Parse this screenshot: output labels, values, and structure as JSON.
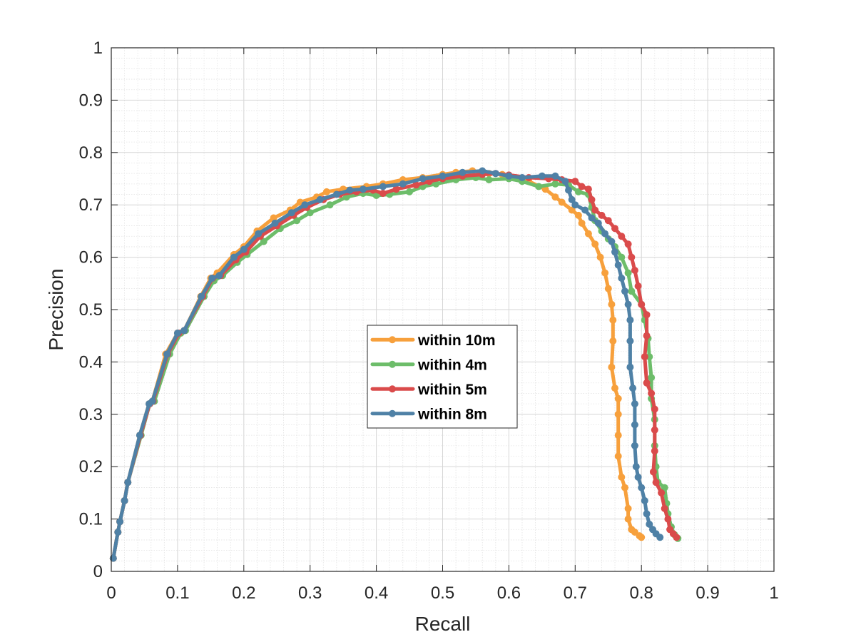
{
  "chart_data": {
    "type": "line",
    "title": "",
    "xlabel": "Recall",
    "ylabel": "Precision",
    "xlim": [
      0,
      1
    ],
    "ylim": [
      0,
      1
    ],
    "xticks": [
      "0",
      "0.1",
      "0.2",
      "0.3",
      "0.4",
      "0.5",
      "0.6",
      "0.7",
      "0.8",
      "0.9",
      "1"
    ],
    "yticks": [
      "0",
      "0.1",
      "0.2",
      "0.3",
      "0.4",
      "0.5",
      "0.6",
      "0.7",
      "0.8",
      "0.9",
      "1"
    ],
    "grid": true,
    "minor_grid": true,
    "legend_position": "center",
    "series": [
      {
        "name": "within 10m",
        "color": "#F7A03C",
        "points": [
          [
            0.003,
            0.025
          ],
          [
            0.01,
            0.075
          ],
          [
            0.013,
            0.095
          ],
          [
            0.02,
            0.135
          ],
          [
            0.025,
            0.17
          ],
          [
            0.043,
            0.26
          ],
          [
            0.057,
            0.32
          ],
          [
            0.062,
            0.325
          ],
          [
            0.082,
            0.415
          ],
          [
            0.1,
            0.455
          ],
          [
            0.11,
            0.46
          ],
          [
            0.135,
            0.525
          ],
          [
            0.15,
            0.56
          ],
          [
            0.16,
            0.57
          ],
          [
            0.185,
            0.605
          ],
          [
            0.2,
            0.62
          ],
          [
            0.22,
            0.65
          ],
          [
            0.245,
            0.675
          ],
          [
            0.27,
            0.69
          ],
          [
            0.285,
            0.705
          ],
          [
            0.31,
            0.715
          ],
          [
            0.325,
            0.725
          ],
          [
            0.35,
            0.73
          ],
          [
            0.385,
            0.735
          ],
          [
            0.41,
            0.74
          ],
          [
            0.44,
            0.748
          ],
          [
            0.47,
            0.752
          ],
          [
            0.5,
            0.758
          ],
          [
            0.52,
            0.762
          ],
          [
            0.545,
            0.765
          ],
          [
            0.57,
            0.76
          ],
          [
            0.59,
            0.758
          ],
          [
            0.61,
            0.752
          ],
          [
            0.63,
            0.745
          ],
          [
            0.655,
            0.73
          ],
          [
            0.67,
            0.715
          ],
          [
            0.68,
            0.705
          ],
          [
            0.695,
            0.69
          ],
          [
            0.705,
            0.68
          ],
          [
            0.71,
            0.665
          ],
          [
            0.72,
            0.645
          ],
          [
            0.73,
            0.625
          ],
          [
            0.738,
            0.6
          ],
          [
            0.745,
            0.57
          ],
          [
            0.75,
            0.54
          ],
          [
            0.755,
            0.51
          ],
          [
            0.757,
            0.48
          ],
          [
            0.757,
            0.44
          ],
          [
            0.755,
            0.39
          ],
          [
            0.76,
            0.35
          ],
          [
            0.765,
            0.33
          ],
          [
            0.765,
            0.3
          ],
          [
            0.765,
            0.26
          ],
          [
            0.765,
            0.22
          ],
          [
            0.77,
            0.18
          ],
          [
            0.775,
            0.16
          ],
          [
            0.78,
            0.12
          ],
          [
            0.78,
            0.1
          ],
          [
            0.785,
            0.08
          ],
          [
            0.79,
            0.075
          ],
          [
            0.797,
            0.068
          ],
          [
            0.8,
            0.065
          ]
        ]
      },
      {
        "name": "within 4m",
        "color": "#6DBD6A",
        "points": [
          [
            0.003,
            0.025
          ],
          [
            0.01,
            0.075
          ],
          [
            0.013,
            0.095
          ],
          [
            0.02,
            0.135
          ],
          [
            0.025,
            0.17
          ],
          [
            0.045,
            0.26
          ],
          [
            0.058,
            0.32
          ],
          [
            0.065,
            0.325
          ],
          [
            0.088,
            0.415
          ],
          [
            0.105,
            0.455
          ],
          [
            0.112,
            0.46
          ],
          [
            0.14,
            0.525
          ],
          [
            0.155,
            0.555
          ],
          [
            0.168,
            0.565
          ],
          [
            0.19,
            0.59
          ],
          [
            0.205,
            0.605
          ],
          [
            0.23,
            0.63
          ],
          [
            0.255,
            0.655
          ],
          [
            0.28,
            0.67
          ],
          [
            0.3,
            0.685
          ],
          [
            0.33,
            0.7
          ],
          [
            0.355,
            0.715
          ],
          [
            0.38,
            0.722
          ],
          [
            0.4,
            0.718
          ],
          [
            0.42,
            0.72
          ],
          [
            0.45,
            0.725
          ],
          [
            0.47,
            0.735
          ],
          [
            0.49,
            0.74
          ],
          [
            0.52,
            0.748
          ],
          [
            0.55,
            0.752
          ],
          [
            0.57,
            0.748
          ],
          [
            0.6,
            0.75
          ],
          [
            0.62,
            0.745
          ],
          [
            0.645,
            0.735
          ],
          [
            0.67,
            0.74
          ],
          [
            0.69,
            0.738
          ],
          [
            0.705,
            0.725
          ],
          [
            0.72,
            0.72
          ],
          [
            0.725,
            0.695
          ],
          [
            0.73,
            0.67
          ],
          [
            0.74,
            0.65
          ],
          [
            0.75,
            0.635
          ],
          [
            0.76,
            0.62
          ],
          [
            0.77,
            0.6
          ],
          [
            0.78,
            0.57
          ],
          [
            0.785,
            0.535
          ],
          [
            0.8,
            0.51
          ],
          [
            0.805,
            0.48
          ],
          [
            0.81,
            0.445
          ],
          [
            0.812,
            0.41
          ],
          [
            0.815,
            0.37
          ],
          [
            0.815,
            0.33
          ],
          [
            0.82,
            0.29
          ],
          [
            0.82,
            0.24
          ],
          [
            0.822,
            0.2
          ],
          [
            0.825,
            0.17
          ],
          [
            0.835,
            0.16
          ],
          [
            0.838,
            0.13
          ],
          [
            0.84,
            0.11
          ],
          [
            0.845,
            0.085
          ],
          [
            0.85,
            0.07
          ],
          [
            0.855,
            0.063
          ]
        ]
      },
      {
        "name": "within 5m",
        "color": "#DA4B4B",
        "points": [
          [
            0.003,
            0.025
          ],
          [
            0.01,
            0.075
          ],
          [
            0.013,
            0.095
          ],
          [
            0.02,
            0.135
          ],
          [
            0.025,
            0.17
          ],
          [
            0.044,
            0.26
          ],
          [
            0.058,
            0.32
          ],
          [
            0.063,
            0.325
          ],
          [
            0.085,
            0.415
          ],
          [
            0.102,
            0.455
          ],
          [
            0.11,
            0.46
          ],
          [
            0.138,
            0.525
          ],
          [
            0.153,
            0.56
          ],
          [
            0.165,
            0.565
          ],
          [
            0.188,
            0.595
          ],
          [
            0.203,
            0.61
          ],
          [
            0.225,
            0.64
          ],
          [
            0.25,
            0.66
          ],
          [
            0.275,
            0.68
          ],
          [
            0.295,
            0.695
          ],
          [
            0.32,
            0.71
          ],
          [
            0.345,
            0.72
          ],
          [
            0.37,
            0.725
          ],
          [
            0.395,
            0.728
          ],
          [
            0.41,
            0.722
          ],
          [
            0.43,
            0.73
          ],
          [
            0.46,
            0.738
          ],
          [
            0.48,
            0.745
          ],
          [
            0.5,
            0.75
          ],
          [
            0.53,
            0.755
          ],
          [
            0.56,
            0.758
          ],
          [
            0.58,
            0.76
          ],
          [
            0.6,
            0.757
          ],
          [
            0.63,
            0.752
          ],
          [
            0.66,
            0.75
          ],
          [
            0.68,
            0.748
          ],
          [
            0.7,
            0.745
          ],
          [
            0.71,
            0.735
          ],
          [
            0.72,
            0.73
          ],
          [
            0.725,
            0.71
          ],
          [
            0.73,
            0.69
          ],
          [
            0.74,
            0.68
          ],
          [
            0.75,
            0.67
          ],
          [
            0.76,
            0.655
          ],
          [
            0.77,
            0.64
          ],
          [
            0.78,
            0.625
          ],
          [
            0.785,
            0.6
          ],
          [
            0.79,
            0.575
          ],
          [
            0.795,
            0.545
          ],
          [
            0.8,
            0.51
          ],
          [
            0.808,
            0.49
          ],
          [
            0.808,
            0.45
          ],
          [
            0.805,
            0.41
          ],
          [
            0.808,
            0.36
          ],
          [
            0.815,
            0.34
          ],
          [
            0.82,
            0.31
          ],
          [
            0.82,
            0.27
          ],
          [
            0.82,
            0.23
          ],
          [
            0.818,
            0.19
          ],
          [
            0.822,
            0.17
          ],
          [
            0.83,
            0.15
          ],
          [
            0.835,
            0.12
          ],
          [
            0.84,
            0.1
          ],
          [
            0.843,
            0.08
          ],
          [
            0.848,
            0.072
          ],
          [
            0.853,
            0.065
          ]
        ]
      },
      {
        "name": "within 8m",
        "color": "#4F81A6",
        "points": [
          [
            0.003,
            0.025
          ],
          [
            0.01,
            0.075
          ],
          [
            0.013,
            0.095
          ],
          [
            0.02,
            0.135
          ],
          [
            0.025,
            0.17
          ],
          [
            0.043,
            0.26
          ],
          [
            0.057,
            0.32
          ],
          [
            0.062,
            0.325
          ],
          [
            0.084,
            0.415
          ],
          [
            0.1,
            0.455
          ],
          [
            0.11,
            0.46
          ],
          [
            0.136,
            0.525
          ],
          [
            0.152,
            0.56
          ],
          [
            0.163,
            0.565
          ],
          [
            0.185,
            0.6
          ],
          [
            0.2,
            0.615
          ],
          [
            0.222,
            0.645
          ],
          [
            0.247,
            0.665
          ],
          [
            0.272,
            0.685
          ],
          [
            0.292,
            0.7
          ],
          [
            0.315,
            0.71
          ],
          [
            0.34,
            0.72
          ],
          [
            0.36,
            0.728
          ],
          [
            0.38,
            0.73
          ],
          [
            0.41,
            0.735
          ],
          [
            0.44,
            0.74
          ],
          [
            0.47,
            0.75
          ],
          [
            0.5,
            0.755
          ],
          [
            0.53,
            0.762
          ],
          [
            0.56,
            0.765
          ],
          [
            0.58,
            0.76
          ],
          [
            0.6,
            0.755
          ],
          [
            0.62,
            0.752
          ],
          [
            0.65,
            0.755
          ],
          [
            0.67,
            0.755
          ],
          [
            0.685,
            0.745
          ],
          [
            0.69,
            0.728
          ],
          [
            0.695,
            0.71
          ],
          [
            0.7,
            0.7
          ],
          [
            0.715,
            0.69
          ],
          [
            0.725,
            0.675
          ],
          [
            0.735,
            0.665
          ],
          [
            0.745,
            0.645
          ],
          [
            0.755,
            0.63
          ],
          [
            0.76,
            0.61
          ],
          [
            0.765,
            0.585
          ],
          [
            0.77,
            0.56
          ],
          [
            0.775,
            0.535
          ],
          [
            0.78,
            0.51
          ],
          [
            0.783,
            0.48
          ],
          [
            0.783,
            0.44
          ],
          [
            0.783,
            0.39
          ],
          [
            0.787,
            0.35
          ],
          [
            0.79,
            0.32
          ],
          [
            0.79,
            0.28
          ],
          [
            0.79,
            0.24
          ],
          [
            0.792,
            0.2
          ],
          [
            0.795,
            0.18
          ],
          [
            0.8,
            0.16
          ],
          [
            0.805,
            0.135
          ],
          [
            0.808,
            0.11
          ],
          [
            0.812,
            0.09
          ],
          [
            0.817,
            0.08
          ],
          [
            0.822,
            0.072
          ],
          [
            0.828,
            0.065
          ]
        ]
      }
    ]
  }
}
